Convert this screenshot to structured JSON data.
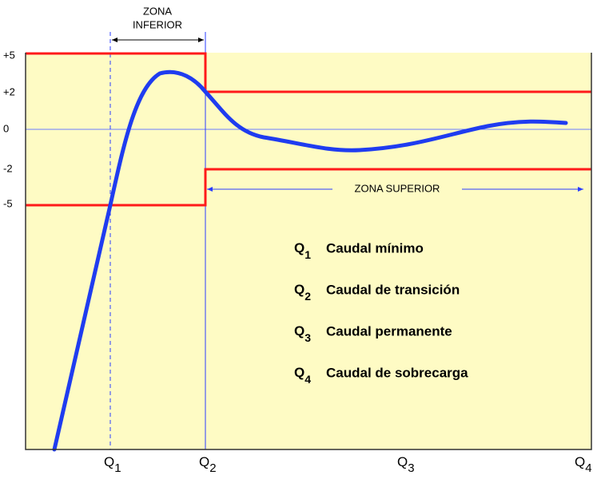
{
  "zona_inferior": {
    "lines": [
      "ZONA",
      "INFERIOR"
    ]
  },
  "zona_superior": "ZONA SUPERIOR",
  "y_labels": [
    "+5",
    "+2",
    "0",
    "-2",
    "-5"
  ],
  "legend": [
    {
      "symbol": "Q",
      "subscript": "1",
      "label": "Caudal mínimo"
    },
    {
      "symbol": "Q",
      "subscript": "2",
      "label": "Caudal de transición"
    },
    {
      "symbol": "Q",
      "subscript": "3",
      "label": "Caudal permanente"
    },
    {
      "symbol": "Q",
      "subscript": "4",
      "label": "Caudal de sobrecarga"
    }
  ],
  "x_labels": [
    {
      "symbol": "Q",
      "subscript": "1"
    },
    {
      "symbol": "Q",
      "subscript": "2"
    },
    {
      "symbol": "Q",
      "subscript": "3"
    },
    {
      "symbol": "Q",
      "subscript": "4"
    }
  ]
}
